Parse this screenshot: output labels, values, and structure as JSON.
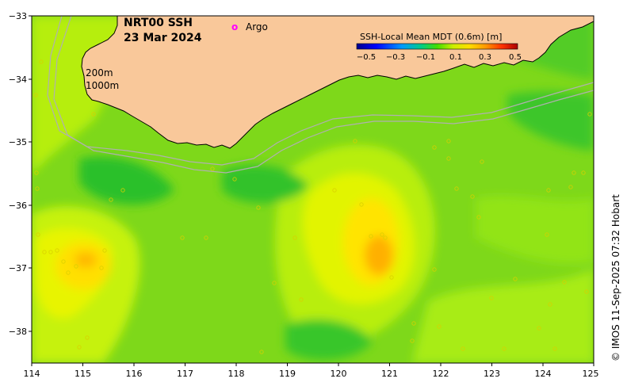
{
  "map": {
    "title": "NRT00 SSH",
    "date": "23 Mar 2024",
    "legend_argo_symbol": "o",
    "legend_argo_label": "Argo",
    "isobath_labels": [
      "200m",
      "1000m"
    ],
    "credit": "© IMOS 11-Sep-2025 07:32 Hobart",
    "colors": {
      "land": "#f9c89a",
      "argo": "#ff00ff",
      "isobath": "#b0b0b0"
    }
  },
  "colorbar": {
    "title": "SSH-Local Mean MDT (0.6m) [m]",
    "tick_labels": [
      "−0.5",
      "−0.3",
      "−0.1",
      "0.1",
      "0.3",
      "0.5"
    ],
    "range": [
      -0.5,
      0.5
    ]
  },
  "axes": {
    "x_ticks": [
      "114",
      "115",
      "116",
      "117",
      "118",
      "119",
      "120",
      "121",
      "122",
      "123",
      "124",
      "125"
    ],
    "y_ticks": [
      "−33",
      "−34",
      "−35",
      "−36",
      "−37",
      "−38"
    ],
    "lon_range": [
      114,
      125
    ],
    "lat_range": [
      -38.5,
      -33
    ]
  },
  "ssh_anomaly_features": [
    {
      "name": "warm-eddy-west",
      "lon": 115.0,
      "lat": -36.9,
      "value": 0.3
    },
    {
      "name": "warm-eddy-central",
      "lon": 120.8,
      "lat": -36.8,
      "value": 0.32
    },
    {
      "name": "cool-patch-south",
      "lon": 120.0,
      "lat": -38.3,
      "value": -0.05
    },
    {
      "name": "cool-patch-shelf",
      "lon": 116.2,
      "lat": -35.6,
      "value": -0.05
    }
  ]
}
